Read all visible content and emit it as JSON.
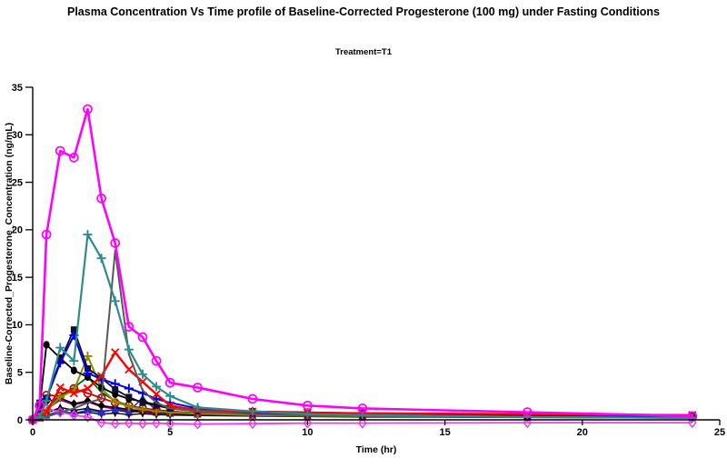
{
  "chart_data": {
    "type": "line",
    "title": "Plasma Concentration Vs Time profile of Baseline-Corrected Progesterone (100 mg) under Fasting Conditions",
    "subtitle": "Treatment=T1",
    "xlabel": "Time (hr)",
    "ylabel": "Baseline-Corrected_Progesterone_Concentration (ng/mL)",
    "xlim": [
      0,
      25
    ],
    "ylim": [
      0,
      35
    ],
    "x_ticks": [
      0,
      5,
      10,
      15,
      20,
      25
    ],
    "y_ticks": [
      0,
      5,
      10,
      15,
      20,
      25,
      30,
      35
    ],
    "grid": false,
    "legend_position": "none",
    "axis_color": "#000000",
    "background_color": "#FFFFFF",
    "x": [
      0,
      0.25,
      0.5,
      1,
      1.5,
      2,
      2.5,
      3,
      3.5,
      4,
      4.5,
      5,
      6,
      8,
      10,
      12,
      18,
      24
    ],
    "series": [
      {
        "name": "subject-purple-line",
        "color": "#800080",
        "marker": "none",
        "line_width": 1.8,
        "values": [
          0,
          0.3,
          1.1,
          2.1,
          1.6,
          1.9,
          1.4,
          1.15,
          0.95,
          0.8,
          0.7,
          0.65,
          0.55,
          0.45,
          0.4,
          0.35,
          0.3,
          0.25
        ]
      },
      {
        "name": "subject-black-down-triangle",
        "color": "#111111",
        "marker": "triangle-down-filled",
        "line_width": 1.5,
        "values": [
          0,
          0.2,
          0.5,
          0.8,
          0.65,
          0.8,
          0.6,
          0.7,
          0.55,
          0.65,
          0.55,
          0.5,
          0.45,
          0.4,
          0.35,
          0.3,
          0.25,
          0.2
        ]
      },
      {
        "name": "subject-black-diamond",
        "color": "#000000",
        "marker": "diamond-filled",
        "line_width": 1.5,
        "values": [
          0,
          1.0,
          1.9,
          2.3,
          1.7,
          2.0,
          1.5,
          1.3,
          1.1,
          0.95,
          0.85,
          0.75,
          0.6,
          0.5,
          0.45,
          0.4,
          0.3,
          0.25
        ]
      },
      {
        "name": "subject-black-triangle",
        "color": "#0A0A0A",
        "marker": "triangle-up-filled",
        "line_width": 1.5,
        "values": [
          0,
          0.3,
          0.7,
          1.3,
          1.0,
          1.2,
          0.9,
          1.05,
          0.8,
          0.95,
          0.8,
          0.7,
          0.6,
          0.5,
          0.45,
          0.4,
          0.35,
          0.3
        ]
      },
      {
        "name": "subject-blue-triangle",
        "color": "#2929CC",
        "marker": "triangle-up-filled",
        "line_width": 1.5,
        "values": [
          0,
          0.2,
          0.5,
          0.9,
          0.7,
          1.0,
          0.8,
          1.1,
          0.9,
          2.3,
          1.0,
          0.8,
          0.65,
          0.5,
          0.45,
          0.4,
          0.3,
          0.25
        ]
      },
      {
        "name": "subject-green-line",
        "color": "#006400",
        "marker": "none",
        "line_width": 1.8,
        "values": [
          0,
          0.4,
          1.2,
          2.6,
          3.4,
          4.5,
          2.9,
          2.0,
          1.5,
          1.2,
          1.0,
          0.9,
          0.7,
          0.55,
          0.45,
          0.4,
          0.3,
          0.2
        ]
      },
      {
        "name": "subject-magenta-diamond",
        "color": "#EE3BEE",
        "marker": "diamond-open",
        "line_width": 1.8,
        "values": [
          0,
          0.6,
          1.2,
          0.8,
          0.5,
          0.3,
          -0.3,
          -0.4,
          -0.35,
          -0.4,
          -0.35,
          -0.4,
          -0.45,
          -0.4,
          -0.35,
          -0.35,
          -0.3,
          -0.3
        ]
      },
      {
        "name": "subject-red-open-circle",
        "color": "#C00000",
        "marker": "circle-open",
        "line_width": 1.8,
        "values": [
          0,
          0.4,
          2.6,
          2.5,
          3.3,
          2.8,
          2.3,
          1.8,
          1.5,
          1.2,
          1.05,
          0.9,
          0.7,
          0.55,
          0.5,
          0.45,
          0.35,
          0.3
        ]
      },
      {
        "name": "subject-olive-plus",
        "color": "#8B8B00",
        "marker": "plus",
        "line_width": 2.0,
        "values": [
          0,
          0.3,
          0.9,
          2.4,
          3.1,
          6.7,
          3.3,
          1.9,
          1.4,
          1.1,
          0.9,
          0.8,
          0.65,
          0.5,
          0.42,
          0.38,
          0.3,
          0.25
        ]
      },
      {
        "name": "subject-black-circle",
        "color": "#000000",
        "marker": "circle-filled",
        "line_width": 1.8,
        "values": [
          0,
          1.2,
          7.9,
          6.5,
          5.2,
          4.5,
          3.4,
          2.7,
          2.2,
          1.9,
          1.6,
          1.4,
          1.1,
          0.9,
          0.8,
          0.7,
          0.5,
          0.4
        ]
      },
      {
        "name": "subject-black-square",
        "color": "#101028",
        "marker": "square-filled",
        "line_width": 1.8,
        "values": [
          0,
          1.8,
          2.3,
          6.2,
          9.5,
          5.4,
          4.4,
          3.2,
          2.4,
          1.8,
          1.5,
          1.2,
          0.9,
          0.7,
          0.6,
          0.5,
          0.4,
          0.3
        ]
      },
      {
        "name": "subject-blue-plus",
        "color": "#0000E6",
        "marker": "plus",
        "line_width": 2.0,
        "values": [
          0,
          0.4,
          2.2,
          6.0,
          8.9,
          4.9,
          4.3,
          3.8,
          3.3,
          2.8,
          2.2,
          1.8,
          1.2,
          0.8,
          0.6,
          0.5,
          0.35,
          0.25
        ]
      },
      {
        "name": "subject-red-x",
        "color": "#FF0000",
        "marker": "x",
        "line_width": 2.4,
        "values": [
          0,
          0.2,
          0.8,
          3.4,
          2.8,
          3.3,
          4.6,
          7.1,
          5.3,
          4.0,
          2.7,
          1.5,
          1.0,
          0.85,
          0.75,
          0.7,
          0.6,
          0.5
        ]
      },
      {
        "name": "subject-gray-line",
        "color": "#595959",
        "marker": "none",
        "line_width": 2.0,
        "values": [
          0,
          0.1,
          0.3,
          0.8,
          1.2,
          1.8,
          2.2,
          17.8,
          6.9,
          3.1,
          1.8,
          1.2,
          0.9,
          0.6,
          0.45,
          0.4,
          0.3,
          0.2
        ]
      },
      {
        "name": "subject-teal-plus",
        "color": "#2E8B8B",
        "marker": "plus",
        "line_width": 2.2,
        "values": [
          0,
          0.3,
          2.0,
          7.6,
          6.2,
          19.5,
          17.0,
          12.5,
          7.4,
          4.8,
          3.5,
          2.5,
          1.3,
          0.9,
          0.6,
          0.5,
          0.3,
          0.2
        ]
      },
      {
        "name": "subject-magenta-circle",
        "color": "#FF00FF",
        "marker": "circle-open",
        "line_width": 2.6,
        "values": [
          0,
          1.5,
          19.5,
          28.3,
          27.6,
          32.7,
          23.3,
          18.6,
          9.8,
          8.7,
          6.2,
          3.9,
          3.4,
          2.2,
          1.5,
          1.2,
          0.8,
          0.4
        ]
      }
    ]
  }
}
